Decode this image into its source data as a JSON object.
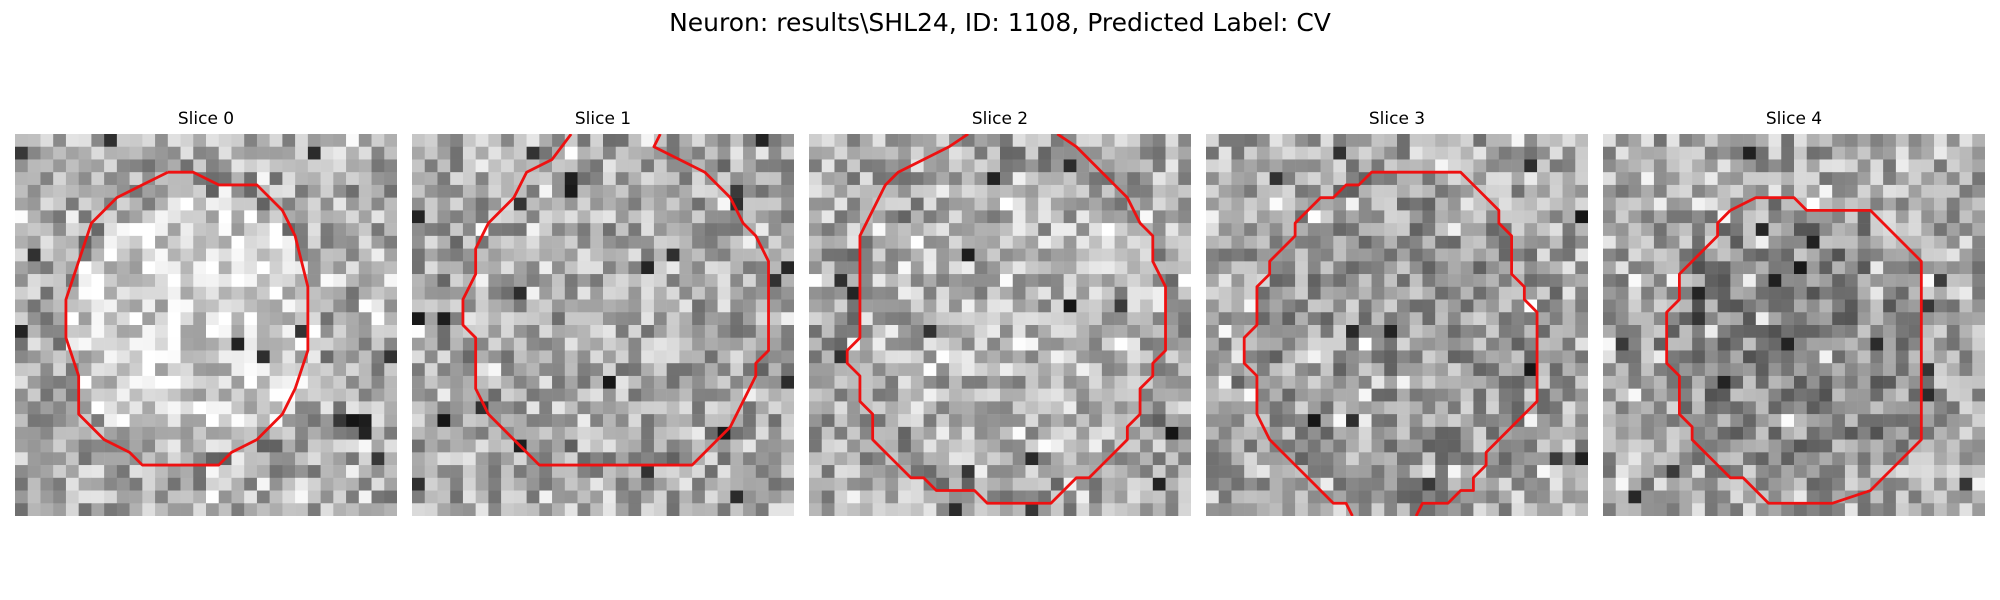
{
  "figure": {
    "title": "Neuron: results\\SHL24, ID: 1108, Predicted Label: CV"
  },
  "panels": [
    {
      "title": "Slice 0"
    },
    {
      "title": "Slice 1"
    },
    {
      "title": "Slice 2"
    },
    {
      "title": "Slice 3"
    },
    {
      "title": "Slice 4"
    }
  ],
  "style": {
    "contour_color": "#ee1111",
    "colormap": "grayscale"
  }
}
